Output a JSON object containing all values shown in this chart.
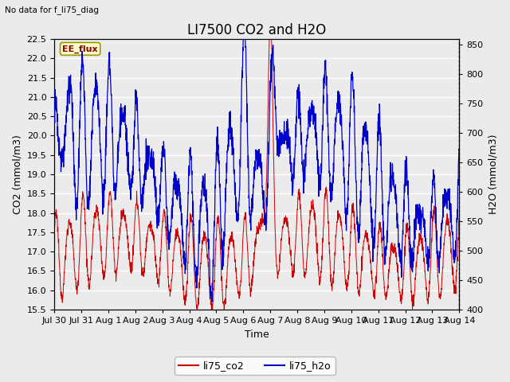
{
  "title": "LI7500 CO2 and H2O",
  "subtitle": "No data for f_li75_diag",
  "xlabel": "Time",
  "ylabel_left": "CO2 (mmol/m3)",
  "ylabel_right": "H2O (mmol/m3)",
  "ylim_left": [
    15.5,
    22.5
  ],
  "ylim_right": [
    400,
    860
  ],
  "yticks_left": [
    15.5,
    16.0,
    16.5,
    17.0,
    17.5,
    18.0,
    18.5,
    19.0,
    19.5,
    20.0,
    20.5,
    21.0,
    21.5,
    22.0,
    22.5
  ],
  "yticks_right": [
    400,
    450,
    500,
    550,
    600,
    650,
    700,
    750,
    800,
    850
  ],
  "xtick_labels": [
    "Jul 30",
    "Jul 31",
    "Aug 1",
    "Aug 2",
    "Aug 3",
    "Aug 4",
    "Aug 5",
    "Aug 6",
    "Aug 7",
    "Aug 8",
    "Aug 9",
    "Aug 10",
    "Aug 11",
    "Aug 12",
    "Aug 13",
    "Aug 14"
  ],
  "legend_labels": [
    "li75_co2",
    "li75_h2o"
  ],
  "legend_colors": [
    "#cc0000",
    "#0000cc"
  ],
  "ee_flux_label": "EE_flux",
  "ee_flux_bg": "#ffffcc",
  "ee_flux_border": "#999900",
  "ee_flux_text_color": "#880000",
  "plot_bg_color": "#ebebeb",
  "grid_color": "#ffffff",
  "co2_color": "#cc0000",
  "h2o_color": "#0000cc",
  "num_points": 2016,
  "title_fontsize": 12,
  "axis_label_fontsize": 9,
  "tick_fontsize": 8
}
